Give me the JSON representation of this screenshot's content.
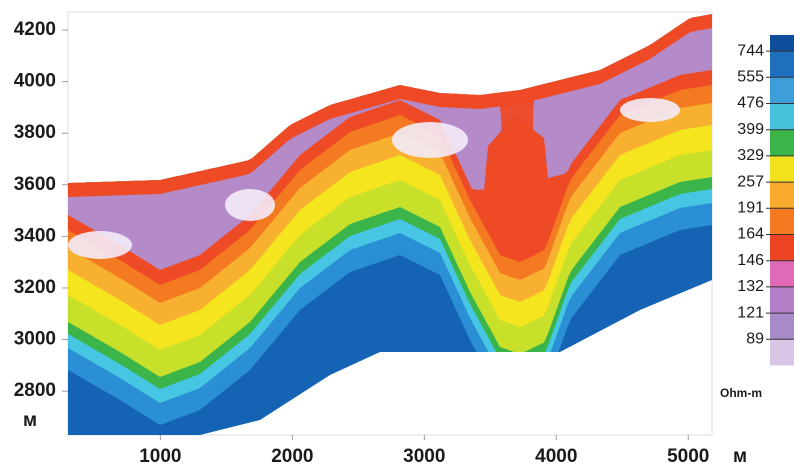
{
  "chart_data": {
    "type": "contour",
    "x_label": "м",
    "y_label": "м",
    "xlim": [
      300,
      5180
    ],
    "xticks": [
      1000,
      2000,
      3000,
      4000,
      5000
    ],
    "ylim": [
      2630,
      4270
    ],
    "yticks": [
      2800,
      3000,
      3200,
      3400,
      3600,
      3800,
      4000,
      4200
    ],
    "colorbar": {
      "levels": [
        744,
        555,
        476,
        399,
        329,
        257,
        191,
        164,
        146,
        132,
        121,
        89
      ],
      "colors": [
        "#1f6fbf",
        "#3f9ed9",
        "#47c2dc",
        "#3bb54a",
        "#f2e21e",
        "#f8a92e",
        "#f47a22",
        "#ee4426",
        "#e06ab8",
        "#b47fc6",
        "#a98ac8",
        "#d9c6e6"
      ],
      "unit": "Ohm-m"
    }
  }
}
